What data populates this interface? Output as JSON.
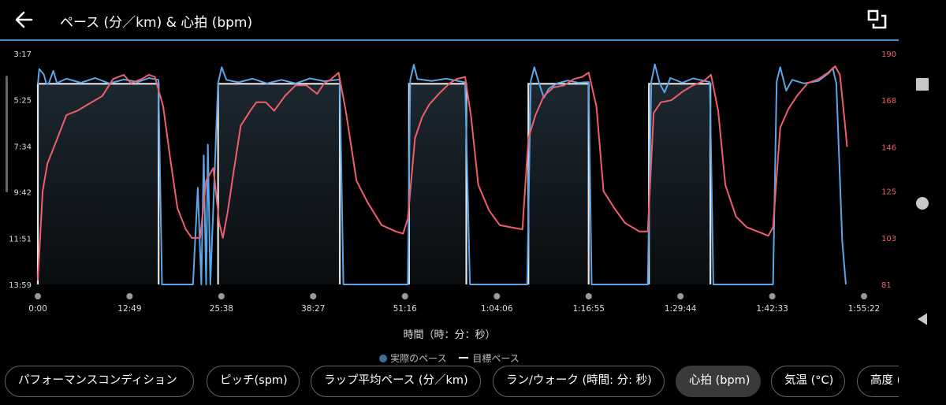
{
  "header": {
    "title": "ペース (分／km) & 心拍 (bpm)",
    "back_icon": "arrow-left-icon",
    "fullscreen_icon": "exit-fullscreen-icon"
  },
  "colors": {
    "pace": "#5aa6e8",
    "target": "#e6e6e6",
    "hr": "#ee5f6d",
    "accent": "#4a90c8",
    "legend_pace_dot": "#3f6f95"
  },
  "chart_data": {
    "type": "line",
    "x_unit": "elapsed time (h:mm:ss)",
    "x_ticks": [
      "0:00",
      "12:49",
      "25:38",
      "38:27",
      "51:16",
      "1:04:06",
      "1:16:55",
      "1:29:44",
      "1:42:33",
      "1:55:22"
    ],
    "xlabel": "時間（時：分：秒）",
    "left_axis": {
      "ticks": [
        "3:17",
        "5:25",
        "7:34",
        "9:42",
        "11:51",
        "13:59"
      ],
      "inverted": true
    },
    "right_axis": {
      "ticks": [
        "190",
        "168",
        "146",
        "125",
        "103",
        "81"
      ],
      "range": [
        81,
        190
      ]
    },
    "legend": [
      "実際のペース",
      "目標ペース"
    ],
    "target_pace_intervals": [
      {
        "start": "0:00",
        "end": "16:52",
        "pace": "4:41"
      },
      {
        "start": "25:10",
        "end": "42:10",
        "pace": "4:41"
      },
      {
        "start": "51:50",
        "end": "59:50",
        "pace": "4:41"
      },
      {
        "start": "1:08:30",
        "end": "1:16:55",
        "pace": "4:41"
      },
      {
        "start": "1:25:20",
        "end": "1:33:55",
        "pace": "4:41"
      }
    ],
    "series": [
      {
        "name": "実際のペース",
        "axis": "left",
        "approx": true,
        "points": [
          [
            "0:00",
            "4:43"
          ],
          [
            "0:12",
            "4:00"
          ],
          [
            "0:50",
            "4:15"
          ],
          [
            "1:10",
            "4:40"
          ],
          [
            "1:30",
            "4:41"
          ],
          [
            "2:10",
            "4:05"
          ],
          [
            "2:40",
            "4:39"
          ],
          [
            "4:00",
            "4:27"
          ],
          [
            "6:00",
            "4:38"
          ],
          [
            "8:00",
            "4:25"
          ],
          [
            "10:00",
            "4:40"
          ],
          [
            "12:00",
            "4:29"
          ],
          [
            "14:00",
            "4:36"
          ],
          [
            "15:30",
            "4:25"
          ],
          [
            "16:50",
            "4:30"
          ],
          [
            "17:20",
            "13:59"
          ],
          [
            "21:40",
            "13:59"
          ],
          [
            "22:20",
            "9:30"
          ],
          [
            "22:50",
            "13:59"
          ],
          [
            "23:10",
            "8:00"
          ],
          [
            "23:30",
            "13:59"
          ],
          [
            "23:45",
            "7:30"
          ],
          [
            "24:05",
            "13:59"
          ],
          [
            "25:10",
            "4:40"
          ],
          [
            "25:40",
            "3:55"
          ],
          [
            "26:20",
            "4:30"
          ],
          [
            "28:00",
            "4:37"
          ],
          [
            "30:00",
            "4:27"
          ],
          [
            "32:00",
            "4:40"
          ],
          [
            "34:00",
            "4:30"
          ],
          [
            "36:00",
            "4:40"
          ],
          [
            "38:00",
            "4:26"
          ],
          [
            "40:00",
            "4:34"
          ],
          [
            "42:10",
            "4:29"
          ],
          [
            "42:40",
            "13:59"
          ],
          [
            "51:40",
            "13:59"
          ],
          [
            "52:00",
            "4:30"
          ],
          [
            "52:30",
            "3:48"
          ],
          [
            "53:00",
            "4:28"
          ],
          [
            "55:00",
            "4:33"
          ],
          [
            "57:00",
            "4:27"
          ],
          [
            "59:40",
            "4:37"
          ],
          [
            "60:20",
            "13:59"
          ],
          [
            "68:20",
            "13:59"
          ],
          [
            "68:50",
            "4:33"
          ],
          [
            "69:20",
            "3:55"
          ],
          [
            "70:00",
            "4:40"
          ],
          [
            "70:40",
            "5:20"
          ],
          [
            "71:20",
            "4:55"
          ],
          [
            "72:30",
            "4:40"
          ],
          [
            "74:00",
            "4:32"
          ],
          [
            "75:30",
            "4:38"
          ],
          [
            "76:55",
            "4:36"
          ],
          [
            "77:20",
            "13:59"
          ],
          [
            "85:10",
            "13:59"
          ],
          [
            "85:40",
            "4:35"
          ],
          [
            "86:10",
            "3:47"
          ],
          [
            "86:50",
            "4:40"
          ],
          [
            "87:30",
            "5:05"
          ],
          [
            "88:20",
            "4:25"
          ],
          [
            "90:00",
            "4:38"
          ],
          [
            "91:30",
            "4:26"
          ],
          [
            "93:50",
            "4:36"
          ],
          [
            "94:20",
            "13:59"
          ],
          [
            "102:40",
            "13:59"
          ],
          [
            "103:10",
            "4:35"
          ],
          [
            "103:40",
            "3:55"
          ],
          [
            "104:30",
            "5:00"
          ],
          [
            "105:20",
            "4:30"
          ],
          [
            "107:00",
            "4:40"
          ],
          [
            "109:00",
            "4:33"
          ],
          [
            "110:30",
            "4:10"
          ],
          [
            "111:00",
            "3:57"
          ],
          [
            "111:30",
            "4:40"
          ],
          [
            "112:20",
            "12:00"
          ],
          [
            "112:50",
            "13:59"
          ]
        ]
      },
      {
        "name": "心拍",
        "axis": "right",
        "approx": true,
        "points": [
          [
            "0:00",
            "83"
          ],
          [
            "0:40",
            "125"
          ],
          [
            "1:20",
            "138"
          ],
          [
            "2:30",
            "148"
          ],
          [
            "4:00",
            "161"
          ],
          [
            "5:30",
            "163"
          ],
          [
            "7:00",
            "166"
          ],
          [
            "9:00",
            "170"
          ],
          [
            "10:30",
            "178"
          ],
          [
            "12:00",
            "180"
          ],
          [
            "13:00",
            "176"
          ],
          [
            "14:30",
            "178"
          ],
          [
            "15:30",
            "180"
          ],
          [
            "16:20",
            "179"
          ],
          [
            "17:30",
            "165"
          ],
          [
            "18:30",
            "140"
          ],
          [
            "19:30",
            "117"
          ],
          [
            "20:40",
            "107"
          ],
          [
            "21:30",
            "103"
          ],
          [
            "22:40",
            "103"
          ],
          [
            "23:30",
            "130"
          ],
          [
            "24:30",
            "136"
          ],
          [
            "25:20",
            "110"
          ],
          [
            "25:50",
            "103"
          ],
          [
            "26:30",
            "115"
          ],
          [
            "27:20",
            "134"
          ],
          [
            "28:20",
            "156"
          ],
          [
            "29:40",
            "163"
          ],
          [
            "30:30",
            "167"
          ],
          [
            "31:50",
            "167"
          ],
          [
            "33:00",
            "163"
          ],
          [
            "34:30",
            "170"
          ],
          [
            "36:00",
            "175"
          ],
          [
            "37:30",
            "175"
          ],
          [
            "39:00",
            "171"
          ],
          [
            "40:00",
            "176"
          ],
          [
            "41:00",
            "178"
          ],
          [
            "42:00",
            "181"
          ],
          [
            "43:00",
            "163"
          ],
          [
            "44:30",
            "130"
          ],
          [
            "46:00",
            "120"
          ],
          [
            "48:00",
            "109"
          ],
          [
            "50:00",
            "106"
          ],
          [
            "51:00",
            "105"
          ],
          [
            "51:40",
            "112"
          ],
          [
            "52:40",
            "150"
          ],
          [
            "53:40",
            "160"
          ],
          [
            "54:40",
            "166"
          ],
          [
            "56:00",
            "171"
          ],
          [
            "57:30",
            "176"
          ],
          [
            "58:30",
            "178"
          ],
          [
            "59:40",
            "179"
          ],
          [
            "60:30",
            "160"
          ],
          [
            "61:30",
            "128"
          ],
          [
            "63:00",
            "116"
          ],
          [
            "64:30",
            "109"
          ],
          [
            "66:00",
            "108"
          ],
          [
            "67:40",
            "107"
          ],
          [
            "68:30",
            "150"
          ],
          [
            "69:30",
            "161"
          ],
          [
            "70:40",
            "170"
          ],
          [
            "72:00",
            "174"
          ],
          [
            "73:30",
            "175"
          ],
          [
            "74:50",
            "178"
          ],
          [
            "76:00",
            "179"
          ],
          [
            "76:55",
            "181"
          ],
          [
            "78:00",
            "165"
          ],
          [
            "79:00",
            "125"
          ],
          [
            "80:30",
            "117"
          ],
          [
            "82:00",
            "110"
          ],
          [
            "84:00",
            "106"
          ],
          [
            "85:10",
            "106"
          ],
          [
            "86:00",
            "162"
          ],
          [
            "87:00",
            "167"
          ],
          [
            "88:30",
            "168"
          ],
          [
            "90:00",
            "172"
          ],
          [
            "91:30",
            "175"
          ],
          [
            "93:00",
            "177"
          ],
          [
            "94:00",
            "180"
          ],
          [
            "95:00",
            "163"
          ],
          [
            "96:00",
            "128"
          ],
          [
            "97:30",
            "113"
          ],
          [
            "99:00",
            "108"
          ],
          [
            "100:30",
            "106"
          ],
          [
            "102:00",
            "104"
          ],
          [
            "102:40",
            "108"
          ],
          [
            "103:40",
            "155"
          ],
          [
            "104:50",
            "164"
          ],
          [
            "106:00",
            "170"
          ],
          [
            "107:30",
            "176"
          ],
          [
            "109:00",
            "178"
          ],
          [
            "110:20",
            "181"
          ],
          [
            "111:20",
            "184"
          ],
          [
            "112:00",
            "180"
          ],
          [
            "112:40",
            "158"
          ],
          [
            "113:00",
            "146"
          ]
        ]
      }
    ]
  },
  "chips": [
    {
      "label": "パフォーマンスコンディション",
      "active": false
    },
    {
      "label": "ピッチ(spm)",
      "active": false
    },
    {
      "label": "ラップ平均ペース (分／km)",
      "active": false
    },
    {
      "label": "ラン/ウォーク (時間: 分: 秒)",
      "active": false
    },
    {
      "label": "心拍 (bpm)",
      "active": true
    },
    {
      "label": "気温 (°C)",
      "active": false
    },
    {
      "label": "高度 (m)",
      "active": false
    }
  ],
  "navbar": {
    "recents_icon": "square-recents-icon",
    "home_icon": "circle-home-icon",
    "back_icon": "triangle-back-icon"
  }
}
